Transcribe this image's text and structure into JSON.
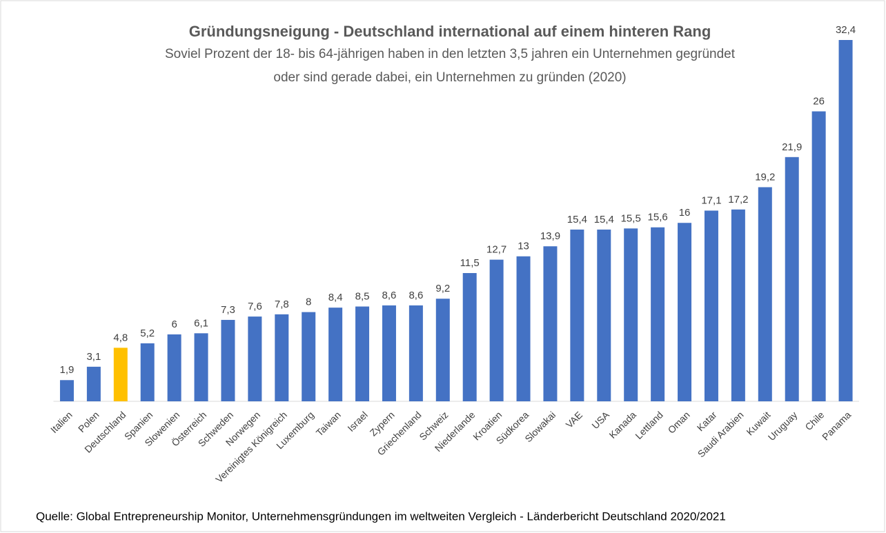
{
  "chart_data": {
    "type": "bar",
    "title": "Gründungsneigung - Deutschland international auf einem hinteren Rang",
    "subtitle": [
      "Soviel Prozent der 18- bis 64-jährigen haben in den letzten 3,5 jahren ein Unternehmen gegründet",
      "oder sind gerade dabei, ein Unternehmen zu gründen (2020)"
    ],
    "source": "Quelle: Global Entrepreneurship Monitor, Unternehmensgründungen im weltweiten Vergleich - Länderbericht Deutschland 2020/2021",
    "categories": [
      "Italien",
      "Polen",
      "Deutschland",
      "Spanien",
      "Slowenien",
      "Österreich",
      "Schweden",
      "Norwegen",
      "Vereinigtes Königreich",
      "Luxemburg",
      "Taiwan",
      "Israel",
      "Zypern",
      "Griechenland",
      "Schweiz",
      "Niederlande",
      "Kroatien",
      "Südkorea",
      "Slowakai",
      "VAE",
      "USA",
      "Kanada",
      "Lettland",
      "Oman",
      "Katar",
      "Saudi Arabien",
      "Kuwait",
      "Uruguay",
      "Chile",
      "Panama"
    ],
    "values": [
      1.9,
      3.1,
      4.8,
      5.2,
      6,
      6.1,
      7.3,
      7.6,
      7.8,
      8,
      8.4,
      8.5,
      8.6,
      8.6,
      9.2,
      11.5,
      12.7,
      13,
      13.9,
      15.4,
      15.4,
      15.5,
      15.6,
      16,
      17.1,
      17.2,
      19.2,
      21.9,
      26,
      32.4
    ],
    "value_labels": [
      "1,9",
      "3,1",
      "4,8",
      "5,2",
      "6",
      "6,1",
      "7,3",
      "7,6",
      "7,8",
      "8",
      "8,4",
      "8,5",
      "8,6",
      "8,6",
      "9,2",
      "11,5",
      "12,7",
      "13",
      "13,9",
      "15,4",
      "15,4",
      "15,5",
      "15,6",
      "16",
      "17,1",
      "17,2",
      "19,2",
      "21,9",
      "26",
      "32,4"
    ],
    "colors": [
      "#4472c4",
      "#4472c4",
      "#ffc000",
      "#4472c4",
      "#4472c4",
      "#4472c4",
      "#4472c4",
      "#4472c4",
      "#4472c4",
      "#4472c4",
      "#4472c4",
      "#4472c4",
      "#4472c4",
      "#4472c4",
      "#4472c4",
      "#4472c4",
      "#4472c4",
      "#4472c4",
      "#4472c4",
      "#4472c4",
      "#4472c4",
      "#4472c4",
      "#4472c4",
      "#4472c4",
      "#4472c4",
      "#4472c4",
      "#4472c4",
      "#4472c4",
      "#4472c4",
      "#4472c4"
    ],
    "ylim": [
      0,
      32.4
    ]
  }
}
